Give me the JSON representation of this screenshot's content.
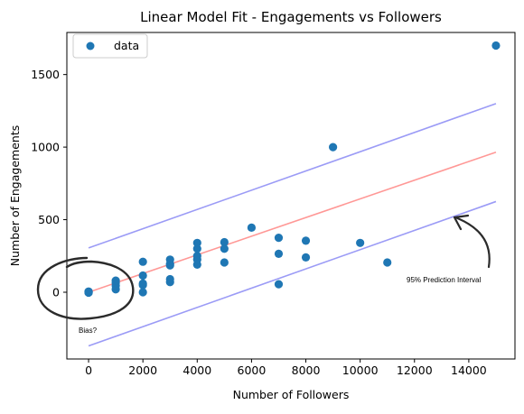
{
  "chart_data": {
    "type": "scatter",
    "title": "Linear Model Fit - Engagements vs Followers",
    "xlabel": "Number of Followers",
    "ylabel": "Number of Engagements",
    "xlim": [
      -800,
      15700
    ],
    "ylim": [
      -460,
      1790
    ],
    "x_ticks": [
      0,
      2000,
      4000,
      6000,
      8000,
      10000,
      12000,
      14000
    ],
    "y_ticks": [
      0,
      500,
      1000,
      1500
    ],
    "grid": false,
    "legend": {
      "placement": "top-left",
      "entries": [
        {
          "label": "data",
          "color": "#1f77b4",
          "marker": "circle"
        }
      ]
    },
    "series": [
      {
        "name": "data",
        "color": "#1f77b4",
        "points": [
          [
            0,
            0
          ],
          [
            0,
            5
          ],
          [
            0,
            -3
          ],
          [
            0,
            2
          ],
          [
            0,
            0
          ],
          [
            1000,
            20
          ],
          [
            1000,
            45
          ],
          [
            1000,
            65
          ],
          [
            1000,
            80
          ],
          [
            2000,
            0
          ],
          [
            2000,
            50
          ],
          [
            2000,
            60
          ],
          [
            2000,
            115
          ],
          [
            2000,
            210
          ],
          [
            3000,
            70
          ],
          [
            3000,
            90
          ],
          [
            3000,
            185
          ],
          [
            3000,
            195
          ],
          [
            3000,
            225
          ],
          [
            4000,
            190
          ],
          [
            4000,
            225
          ],
          [
            4000,
            250
          ],
          [
            4000,
            300
          ],
          [
            4000,
            340
          ],
          [
            5000,
            205
          ],
          [
            5000,
            300
          ],
          [
            5000,
            345
          ],
          [
            6000,
            445
          ],
          [
            7000,
            55
          ],
          [
            7000,
            265
          ],
          [
            7000,
            375
          ],
          [
            8000,
            240
          ],
          [
            8000,
            355
          ],
          [
            9000,
            1000
          ],
          [
            10000,
            340
          ],
          [
            11000,
            205
          ],
          [
            15000,
            1700
          ]
        ]
      }
    ],
    "lines": [
      {
        "role": "fit",
        "color": "#ff9896",
        "from": [
          0,
          0
        ],
        "to": [
          15000,
          965
        ]
      },
      {
        "role": "upper-interval",
        "color": "#9b9bf6",
        "from": [
          0,
          305
        ],
        "to": [
          15000,
          1300
        ]
      },
      {
        "role": "lower-interval",
        "color": "#9b9bf6",
        "from": [
          0,
          -370
        ],
        "to": [
          15000,
          625
        ]
      }
    ],
    "annotations": {
      "bias": "Bias?",
      "prediction_interval": "95% Prediction Interval"
    }
  }
}
